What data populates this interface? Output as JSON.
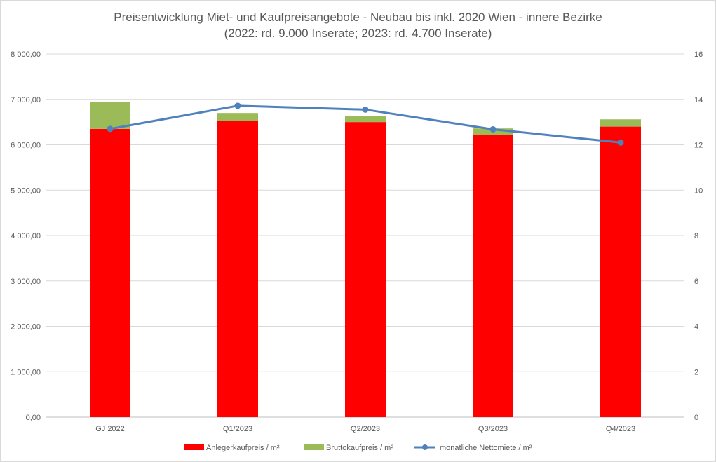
{
  "chart_data": {
    "type": "bar",
    "title_line1": "Preisentwicklung Miet- und Kaufpreisangebote - Neubau bis inkl. 2020 Wien - innere Bezirke",
    "title_line2": "(2022: rd. 9.000 Inserate;  2023: rd. 4.700 Inserate)",
    "categories": [
      "GJ 2022",
      "Q1/2023",
      "Q2/2023",
      "Q3/2023",
      "Q4/2023"
    ],
    "series": [
      {
        "name": "Anlegerkaufpreis / m²",
        "type": "stacked-bar",
        "axis": "left",
        "color": "#ff0000",
        "values": [
          6350,
          6530,
          6500,
          6220,
          6400
        ]
      },
      {
        "name": "Bruttokaufpreis / m²",
        "type": "stacked-bar",
        "axis": "left",
        "color": "#9bbb59",
        "values": [
          590,
          170,
          140,
          140,
          160
        ]
      },
      {
        "name": "monatliche Nettomiete / m²",
        "type": "line",
        "axis": "right",
        "color": "#4f81bd",
        "values": [
          12.7,
          13.72,
          13.55,
          12.68,
          12.1
        ]
      }
    ],
    "y_left": {
      "min": 0,
      "max": 8000,
      "step": 1000,
      "ticks": [
        "0,00",
        "1 000,00",
        "2 000,00",
        "3 000,00",
        "4 000,00",
        "5 000,00",
        "6 000,00",
        "7 000,00",
        "8 000,00"
      ]
    },
    "y_right": {
      "min": 0,
      "max": 16,
      "step": 2,
      "ticks": [
        "0",
        "2",
        "4",
        "6",
        "8",
        "10",
        "12",
        "14",
        "16"
      ]
    },
    "grid": true,
    "legend_position": "bottom"
  }
}
